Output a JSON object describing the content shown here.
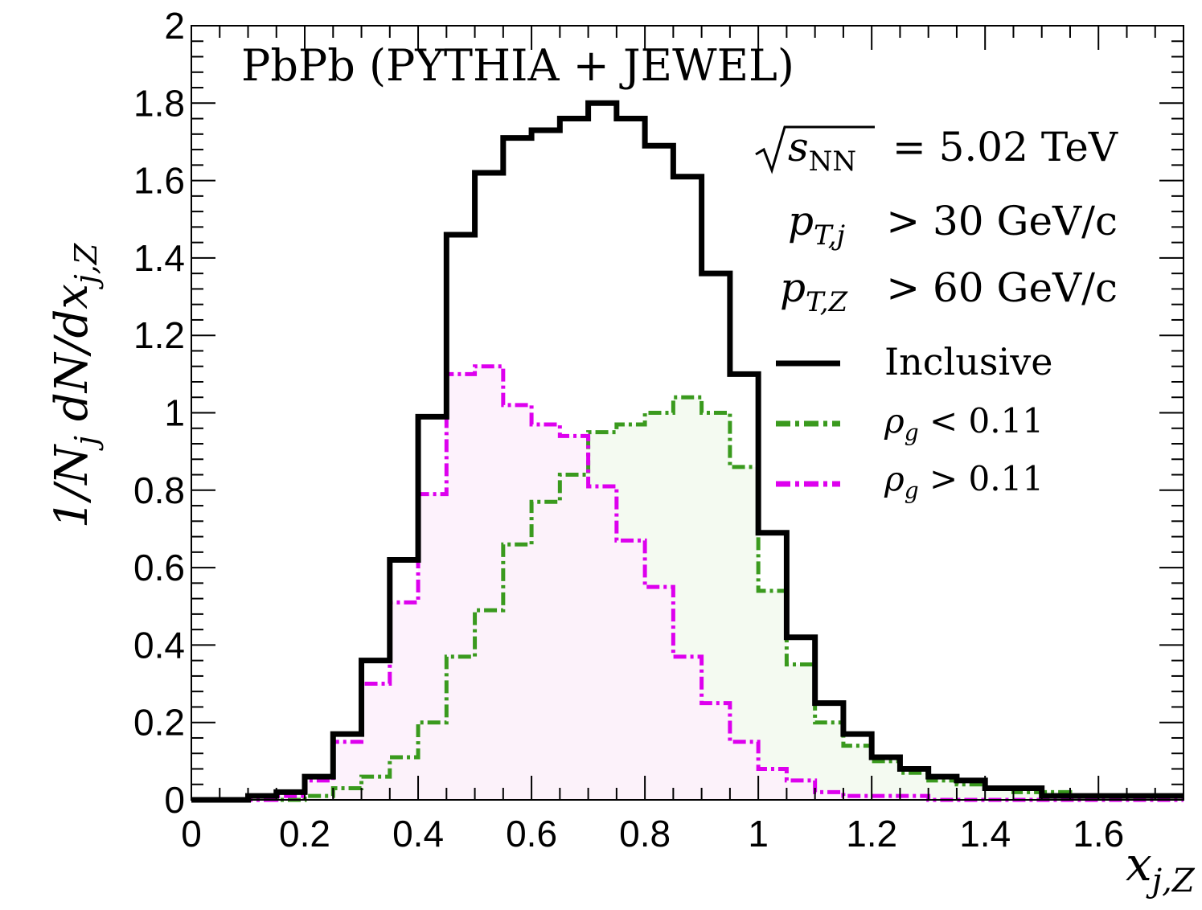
{
  "chart_data": {
    "type": "line",
    "style": "step-histogram",
    "bin_width": 0.05,
    "xlim": [
      0,
      1.75
    ],
    "ylim": [
      0,
      2
    ],
    "x_ticks": [
      0,
      0.2,
      0.4,
      0.6,
      0.8,
      1,
      1.2,
      1.4,
      1.6
    ],
    "x_tick_labels": [
      "0",
      "0.2",
      "0.4",
      "0.6",
      "0.8",
      "1",
      "1.2",
      "1.4",
      "1.6"
    ],
    "y_ticks": [
      0,
      0.2,
      0.4,
      0.6,
      0.8,
      1,
      1.2,
      1.4,
      1.6,
      1.8,
      2
    ],
    "y_tick_labels": [
      "0",
      "0.2",
      "0.4",
      "0.6",
      "0.8",
      "1",
      "1.2",
      "1.4",
      "1.6",
      "1.8",
      "2"
    ],
    "xlabel": {
      "base": "x",
      "sub": "j,Z"
    },
    "ylabel": {
      "text": "1/N",
      "sub1": "j",
      "mid": " dN/dx",
      "sub2": "j,Z"
    },
    "title": "PbPb (PYTHIA + JEWEL)",
    "annotations": {
      "energy": {
        "root_arg": "s",
        "root_sub": "NN",
        "text": "= 5.02 TeV"
      },
      "jet_cut": {
        "var": "p",
        "sub": "T,j",
        "text": "> 30 GeV/c"
      },
      "z_cut": {
        "var": "p",
        "sub": "T,Z",
        "text": "> 60 GeV/c"
      }
    },
    "legend_position": "right",
    "series": [
      {
        "name": "Inclusive",
        "legend_sym": "",
        "legend_text": "Inclusive",
        "color": "#000000",
        "filled": false,
        "values": [
          0,
          0,
          0.01,
          0.02,
          0.06,
          0.17,
          0.36,
          0.62,
          0.99,
          1.46,
          1.62,
          1.71,
          1.73,
          1.76,
          1.8,
          1.76,
          1.69,
          1.61,
          1.36,
          1.1,
          0.69,
          0.42,
          0.25,
          0.17,
          0.11,
          0.08,
          0.06,
          0.05,
          0.03,
          0.03,
          0.01,
          0.01,
          0.01,
          0.01,
          0.01
        ]
      },
      {
        "name": "rho_g < 0.11",
        "legend_sym": "ρ",
        "legend_sub": "g",
        "legend_text": "< 0.11",
        "color": "#3a9a1e",
        "fill": "#f2f9ee",
        "filled": true,
        "values": [
          0,
          0,
          0,
          0,
          0.01,
          0.03,
          0.06,
          0.11,
          0.2,
          0.37,
          0.49,
          0.66,
          0.77,
          0.84,
          0.95,
          0.97,
          1.0,
          1.04,
          1.0,
          0.86,
          0.54,
          0.35,
          0.2,
          0.14,
          0.1,
          0.07,
          0.05,
          0.04,
          0.03,
          0.02,
          0.02,
          0.01,
          0.01,
          0.01,
          0.01
        ]
      },
      {
        "name": "rho_g > 0.11",
        "legend_sym": "ρ",
        "legend_sub": "g",
        "legend_text": "> 0.11",
        "color": "#dd00ee",
        "fill": "#fdf0fc",
        "filled": true,
        "values": [
          0,
          0,
          0,
          0.01,
          0.05,
          0.15,
          0.3,
          0.51,
          0.79,
          1.1,
          1.12,
          1.02,
          0.97,
          0.94,
          0.81,
          0.67,
          0.55,
          0.37,
          0.25,
          0.15,
          0.08,
          0.05,
          0.02,
          0.01,
          0.01,
          0.01,
          0,
          0,
          0,
          0,
          0,
          0,
          0,
          0,
          0
        ]
      }
    ]
  }
}
